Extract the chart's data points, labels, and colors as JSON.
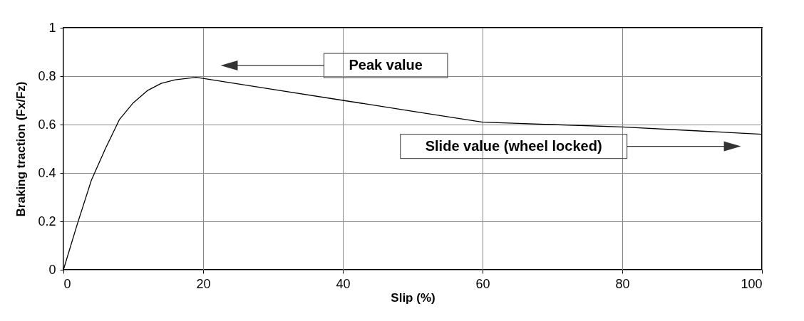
{
  "chart_data": {
    "type": "line",
    "xlabel": "Slip (%)",
    "ylabel": "Braking traction (Fx/Fz)",
    "x": [
      0,
      2,
      4,
      6,
      8,
      10,
      12,
      14,
      16,
      19,
      30,
      40,
      50,
      60,
      70,
      80,
      90,
      100
    ],
    "series": [
      {
        "color": "#000000",
        "values": [
          0,
          0.19,
          0.37,
          0.5,
          0.62,
          0.69,
          0.74,
          0.77,
          0.785,
          0.795,
          0.745,
          0.7,
          0.655,
          0.61,
          0.6,
          0.59,
          0.575,
          0.56
        ]
      }
    ],
    "xlim": [
      0,
      100
    ],
    "xticks": [
      0,
      20,
      40,
      60,
      80,
      100
    ],
    "ylim": [
      0,
      1
    ],
    "yticks": [
      0,
      0.2,
      0.4,
      0.6,
      0.8,
      1
    ],
    "grid": true,
    "marker": "none",
    "line_style": "solid",
    "annotations": [
      "Peak value",
      "Slide value (wheel locked)"
    ]
  }
}
